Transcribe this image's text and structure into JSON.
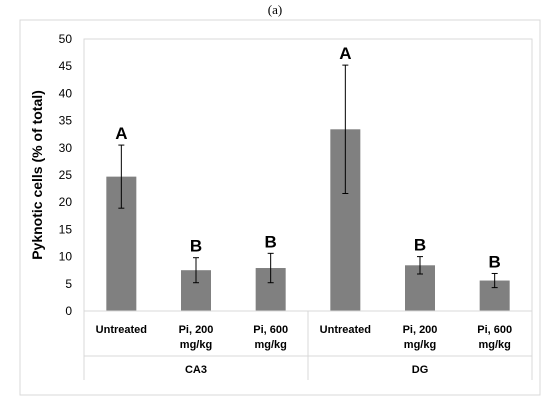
{
  "panel_label": "(a)",
  "chart_data": {
    "type": "bar",
    "ylabel": "Pyknotic cells (% of total)",
    "xlabel": "",
    "ylim": [
      0,
      50
    ],
    "yticks": [
      0,
      5,
      10,
      15,
      20,
      25,
      30,
      35,
      40,
      45,
      50
    ],
    "grid": false,
    "bar_color": "#808080",
    "groups": [
      "CA3",
      "DG"
    ],
    "categories": [
      [
        "Untreated"
      ],
      [
        "Pi, 200",
        "mg/kg"
      ],
      [
        "Pi, 600",
        "mg/kg"
      ],
      [
        "Untreated"
      ],
      [
        "Pi, 200",
        "mg/kg"
      ],
      [
        "Pi, 600",
        "mg/kg"
      ]
    ],
    "values": [
      24.7,
      7.5,
      7.9,
      33.4,
      8.4,
      5.6
    ],
    "errors": [
      5.8,
      2.3,
      2.7,
      11.8,
      1.6,
      1.3
    ],
    "significance": [
      "A",
      "B",
      "B",
      "A",
      "B",
      "B"
    ]
  }
}
